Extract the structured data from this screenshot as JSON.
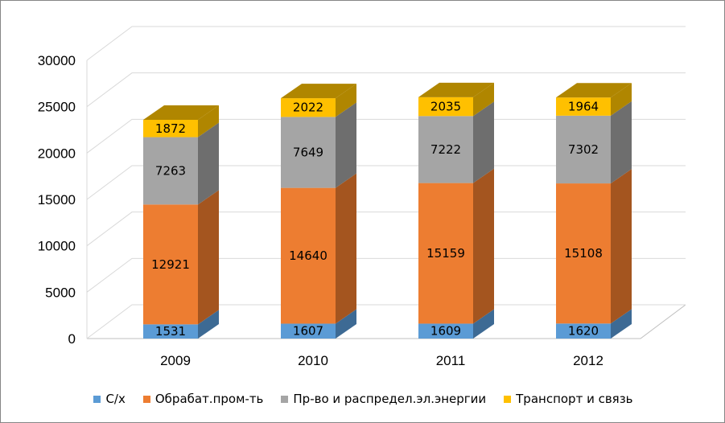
{
  "chart_data": {
    "type": "bar",
    "stacked": true,
    "style": "3d-column",
    "categories": [
      "2009",
      "2010",
      "2011",
      "2012"
    ],
    "series": [
      {
        "name": "С/х",
        "values": [
          1531,
          1607,
          1609,
          1620
        ],
        "color": "#5b9bd5",
        "side": "#3d6a94"
      },
      {
        "name": "Обрабат.пром-ть",
        "values": [
          12921,
          14640,
          15159,
          15108
        ],
        "color": "#ed7d31",
        "side": "#a4551f"
      },
      {
        "name": "Пр-во и распредел.эл.энергии",
        "values": [
          7263,
          7649,
          7222,
          7302
        ],
        "color": "#a5a5a5",
        "side": "#6e6e6e"
      },
      {
        "name": "Транспорт и связь",
        "values": [
          1872,
          2022,
          2035,
          1964
        ],
        "color": "#ffc000",
        "side": "#b08600"
      }
    ],
    "ylim": [
      0,
      30000
    ],
    "yticks": [
      0,
      5000,
      10000,
      15000,
      20000,
      25000,
      30000
    ],
    "grid": true,
    "legend": "bottom",
    "data_labels": true
  }
}
